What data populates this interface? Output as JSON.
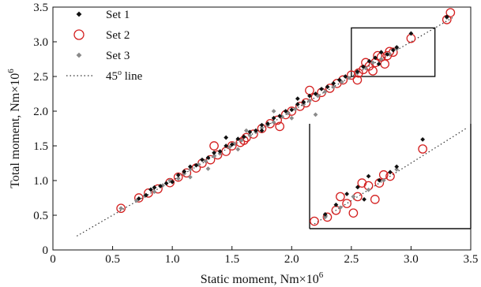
{
  "chart_data": {
    "type": "scatter",
    "xlabel": "Static moment, Nm×10",
    "xlabel_sup": "6",
    "ylabel": "Total moment, Nm×10",
    "ylabel_sup": "6",
    "xlim": [
      0,
      3.5
    ],
    "ylim": [
      0,
      3.5
    ],
    "x_ticks": [
      "0",
      "0.5",
      "1.0",
      "1.5",
      "2.0",
      "2.5",
      "3.0",
      "3.5"
    ],
    "y_ticks": [
      "0",
      "0.5",
      "1.0",
      "1.5",
      "2.0",
      "2.5",
      "3.0",
      "3.5"
    ],
    "grid": false,
    "legend_position": "top-left",
    "reference_line": {
      "name": "45",
      "name_sup": "o",
      "name_suffix": " line",
      "x": [
        0.2,
        3.35
      ],
      "y": [
        0.2,
        3.35
      ],
      "style": "dotted",
      "color": "#333333"
    },
    "zoom_box": {
      "x": [
        2.5,
        3.2
      ],
      "y": [
        2.5,
        3.2
      ]
    },
    "inset": {
      "source_x": [
        2.5,
        3.2
      ],
      "source_y": [
        2.5,
        3.2
      ]
    },
    "series": [
      {
        "name": "Set 1",
        "marker": "diamond-filled",
        "color": "#111111",
        "points": [
          [
            0.72,
            0.74
          ],
          [
            0.78,
            0.79
          ],
          [
            0.82,
            0.87
          ],
          [
            0.85,
            0.9
          ],
          [
            0.9,
            0.92
          ],
          [
            0.95,
            0.96
          ],
          [
            1.0,
            0.98
          ],
          [
            1.05,
            1.08
          ],
          [
            1.1,
            1.13
          ],
          [
            1.15,
            1.2
          ],
          [
            1.2,
            1.22
          ],
          [
            1.25,
            1.3
          ],
          [
            1.3,
            1.33
          ],
          [
            1.35,
            1.4
          ],
          [
            1.4,
            1.42
          ],
          [
            1.45,
            1.5
          ],
          [
            1.5,
            1.52
          ],
          [
            1.55,
            1.6
          ],
          [
            1.6,
            1.63
          ],
          [
            1.65,
            1.7
          ],
          [
            1.7,
            1.72
          ],
          [
            1.75,
            1.8
          ],
          [
            1.8,
            1.82
          ],
          [
            1.85,
            1.9
          ],
          [
            1.9,
            1.93
          ],
          [
            1.95,
            2.0
          ],
          [
            2.0,
            2.02
          ],
          [
            2.05,
            2.1
          ],
          [
            2.1,
            2.13
          ],
          [
            2.15,
            2.22
          ],
          [
            2.2,
            2.25
          ],
          [
            2.25,
            2.32
          ],
          [
            2.3,
            2.35
          ],
          [
            2.35,
            2.4
          ],
          [
            2.4,
            2.45
          ],
          [
            2.45,
            2.5
          ],
          [
            2.55,
            2.57
          ],
          [
            2.6,
            2.64
          ],
          [
            2.65,
            2.72
          ],
          [
            2.7,
            2.77
          ],
          [
            2.73,
            2.68
          ],
          [
            2.75,
            2.85
          ],
          [
            2.8,
            2.82
          ],
          [
            2.85,
            2.88
          ],
          [
            2.88,
            2.92
          ],
          [
            3.0,
            3.12
          ],
          [
            3.3,
            3.36
          ],
          [
            1.45,
            1.62
          ],
          [
            2.05,
            2.18
          ],
          [
            1.75,
            1.72
          ]
        ]
      },
      {
        "name": "Set 2",
        "marker": "circle-open",
        "color": "#d42020",
        "points": [
          [
            0.57,
            0.6
          ],
          [
            0.72,
            0.75
          ],
          [
            0.8,
            0.82
          ],
          [
            0.88,
            0.88
          ],
          [
            0.98,
            0.97
          ],
          [
            1.05,
            1.05
          ],
          [
            1.12,
            1.11
          ],
          [
            1.2,
            1.18
          ],
          [
            1.25,
            1.25
          ],
          [
            1.32,
            1.3
          ],
          [
            1.38,
            1.37
          ],
          [
            1.45,
            1.42
          ],
          [
            1.5,
            1.5
          ],
          [
            1.57,
            1.55
          ],
          [
            1.62,
            1.62
          ],
          [
            1.68,
            1.67
          ],
          [
            1.75,
            1.75
          ],
          [
            1.82,
            1.82
          ],
          [
            1.88,
            1.87
          ],
          [
            1.95,
            1.95
          ],
          [
            2.0,
            2.0
          ],
          [
            2.07,
            2.07
          ],
          [
            2.12,
            2.12
          ],
          [
            2.2,
            2.2
          ],
          [
            2.25,
            2.27
          ],
          [
            2.32,
            2.33
          ],
          [
            2.38,
            2.4
          ],
          [
            2.43,
            2.45
          ],
          [
            2.5,
            2.52
          ],
          [
            2.56,
            2.55
          ],
          [
            2.6,
            2.6
          ],
          [
            2.65,
            2.65
          ],
          [
            2.7,
            2.7
          ],
          [
            2.75,
            2.78
          ],
          [
            2.8,
            2.8
          ],
          [
            2.85,
            2.85
          ],
          [
            3.0,
            3.05
          ],
          [
            3.3,
            3.32
          ],
          [
            3.33,
            3.42
          ],
          [
            1.35,
            1.5
          ],
          [
            1.6,
            1.58
          ],
          [
            2.15,
            2.3
          ],
          [
            1.9,
            1.78
          ],
          [
            2.55,
            2.45
          ],
          [
            2.62,
            2.7
          ],
          [
            2.68,
            2.58
          ],
          [
            2.72,
            2.8
          ],
          [
            2.78,
            2.68
          ],
          [
            2.82,
            2.86
          ]
        ]
      },
      {
        "name": "Set 3",
        "marker": "diamond-filled",
        "color": "#8a8a8a",
        "points": [
          [
            0.57,
            0.6
          ],
          [
            0.7,
            0.71
          ],
          [
            0.77,
            0.78
          ],
          [
            0.85,
            0.84
          ],
          [
            0.92,
            0.93
          ],
          [
            0.98,
            1.0
          ],
          [
            1.05,
            1.03
          ],
          [
            1.1,
            1.1
          ],
          [
            1.15,
            1.16
          ],
          [
            1.22,
            1.23
          ],
          [
            1.28,
            1.28
          ],
          [
            1.35,
            1.35
          ],
          [
            1.4,
            1.39
          ],
          [
            1.48,
            1.48
          ],
          [
            1.52,
            1.53
          ],
          [
            1.58,
            1.58
          ],
          [
            1.65,
            1.65
          ],
          [
            1.7,
            1.7
          ],
          [
            1.75,
            1.76
          ],
          [
            1.8,
            1.8
          ],
          [
            1.85,
            1.84
          ],
          [
            1.92,
            1.92
          ],
          [
            1.97,
            1.97
          ],
          [
            2.03,
            2.03
          ],
          [
            2.1,
            2.1
          ],
          [
            2.15,
            2.15
          ],
          [
            2.22,
            2.22
          ],
          [
            2.28,
            2.28
          ],
          [
            2.35,
            2.35
          ],
          [
            2.42,
            2.42
          ],
          [
            2.48,
            2.48
          ],
          [
            2.55,
            2.55
          ],
          [
            2.62,
            2.62
          ],
          [
            2.68,
            2.7
          ],
          [
            2.75,
            2.75
          ],
          [
            2.82,
            2.82
          ],
          [
            2.88,
            2.9
          ],
          [
            3.3,
            3.35
          ],
          [
            1.3,
            1.17
          ],
          [
            2.2,
            1.95
          ],
          [
            1.62,
            1.72
          ],
          [
            1.85,
            2.0
          ],
          [
            1.55,
            1.45
          ],
          [
            2.0,
            1.9
          ],
          [
            1.15,
            1.05
          ]
        ]
      }
    ]
  }
}
